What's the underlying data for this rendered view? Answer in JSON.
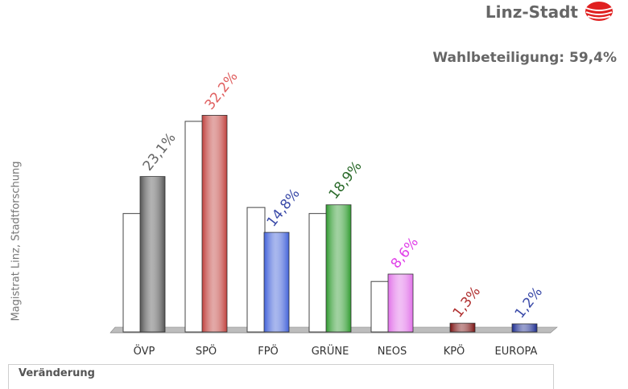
{
  "header": {
    "brand": "Linz-Stadt",
    "turnout": "Wahlbeteiligung: 59,4%"
  },
  "side_note": "Magistrat Linz, Stadtforschung",
  "footer": {
    "title": "Veränderung"
  },
  "colors": {
    "ÖVP": "#555555",
    "SPÖ": "#c0403c",
    "FPÖ": "#4060d8",
    "GRÜNE": "#2e9a2e",
    "NEOS": "#e070e8",
    "KPÖ": "#7a1010",
    "EUROPA": "#1a2a90",
    "label_ÖVP": "#666666",
    "label_SPÖ": "#e06060",
    "label_FPÖ": "#3a4aa8",
    "label_GRÜNE": "#2a6a2a",
    "label_NEOS": "#e040e8",
    "label_KPÖ": "#b03030",
    "label_EUROPA": "#3a4aa8",
    "logo": "#e02020"
  },
  "chart_data": {
    "type": "bar",
    "categories": [
      "ÖVP",
      "SPÖ",
      "FPÖ",
      "GRÜNE",
      "NEOS",
      "KPÖ",
      "EUROPA"
    ],
    "series": [
      {
        "values": [
          23.1,
          32.2,
          14.8,
          18.9,
          8.6,
          1.3,
          1.2
        ]
      },
      {
        "values": [
          17.6,
          31.3,
          18.5,
          17.6,
          7.5,
          0,
          0
        ]
      }
    ],
    "value_labels": [
      "23,1%",
      "32,2%",
      "14,8%",
      "18,9%",
      "8,6%",
      "1,3%",
      "1,2%"
    ],
    "ylim": [
      0,
      35
    ],
    "title": "",
    "xlabel": "",
    "ylabel": ""
  }
}
